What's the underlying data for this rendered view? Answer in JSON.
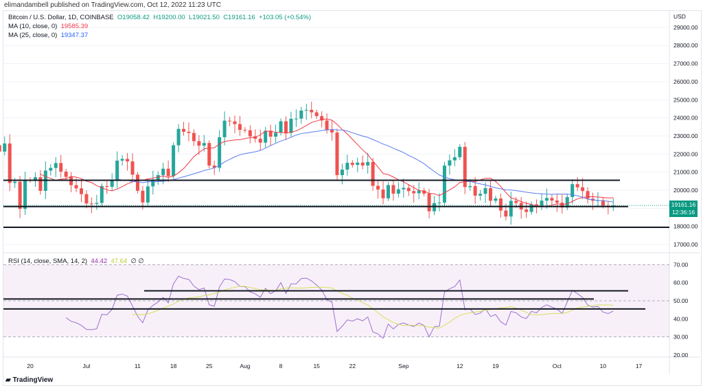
{
  "header": {
    "published": "elimandambell published on TradingView.com, Oct 12, 2022 11:23 UTC"
  },
  "legend": {
    "symbol": "Bitcoin / U.S. Dollar, 1D, COINBASE",
    "open": "O19058.42",
    "high": "H19200.00",
    "low": "L19021.50",
    "close": "C19161.16",
    "change": "+103.05 (+0.54%)",
    "ma10_label": "MA (10, close, 0)",
    "ma10_value": "19585.39",
    "ma25_label": "MA (25, close, 0)",
    "ma25_value": "19347.37",
    "rsi_label": "RSI (14, close, SMA, 14, 2)",
    "rsi_value": "44.42",
    "rsi_sma_value": "47.64",
    "rsi_extra": "∅ ∅"
  },
  "price_tag": {
    "price": "19161.16",
    "countdown": "12:36:16"
  },
  "footer": {
    "logo": "TradingView"
  },
  "colors": {
    "up": "#26a69a",
    "down": "#ef5350",
    "ma10": "#f23645",
    "ma25": "#2962ff",
    "rsi": "#9c27b0",
    "rsi_sma": "#cddc39"
  },
  "chart_data": {
    "type": "candlestick",
    "currency": "USD",
    "start_date": "2022-06-13",
    "closes": [
      22487,
      22136,
      22583,
      20401,
      20468,
      18970,
      20574,
      20573,
      20719,
      19965,
      21085,
      21231,
      21502,
      21028,
      20735,
      20281,
      20104,
      19784,
      19269,
      19243,
      19297,
      20231,
      20190,
      20548,
      21637,
      21731,
      21592,
      20860,
      19970,
      19323,
      20212,
      20569,
      20836,
      21190,
      20779,
      22485,
      23389,
      23231,
      23164,
      22714,
      22465,
      22609,
      21361,
      21239,
      22930,
      23843,
      23804,
      23656,
      23336,
      23314,
      22978,
      22846,
      22630,
      23289,
      22961,
      23175,
      23810,
      23164,
      23948,
      23957,
      24403,
      24442,
      24305,
      24094,
      23855,
      23342,
      23192,
      20835,
      21140,
      21515,
      21400,
      21529,
      21368,
      21560,
      20242,
      20041,
      19555,
      20285,
      19812,
      20050,
      20131,
      19952,
      19832,
      19986,
      19812,
      18837,
      19290,
      19319,
      21361,
      21651,
      21826,
      22396,
      20173,
      20227,
      19701,
      19803,
      20113,
      19416,
      19545,
      18876,
      18547,
      19413,
      19297,
      18937,
      18802,
      19222,
      19110,
      19426,
      19573,
      19431,
      19312,
      19044,
      19623,
      20336,
      20160,
      19955,
      19532,
      19417,
      19446,
      19141,
      19058,
      19161
    ],
    "y_ticks": [
      "29000.00",
      "28000.00",
      "27000.00",
      "26000.00",
      "25000.00",
      "24000.00",
      "23000.00",
      "22000.00",
      "21000.00",
      "20000.00",
      "18000.00",
      "17000.00"
    ],
    "rsi_ticks": [
      "70.00",
      "60.00",
      "50.00",
      "40.00",
      "30.00",
      "20.00"
    ],
    "x_ticks": [
      "20",
      "Jul",
      "11",
      "18",
      "25",
      "Aug",
      "8",
      "15",
      "22",
      "Sep",
      "12",
      "19",
      "Oct",
      "10",
      "17"
    ],
    "price_levels": [
      20550,
      19100,
      17950
    ],
    "rsi_levels": [
      55.5,
      51,
      45.5
    ]
  }
}
